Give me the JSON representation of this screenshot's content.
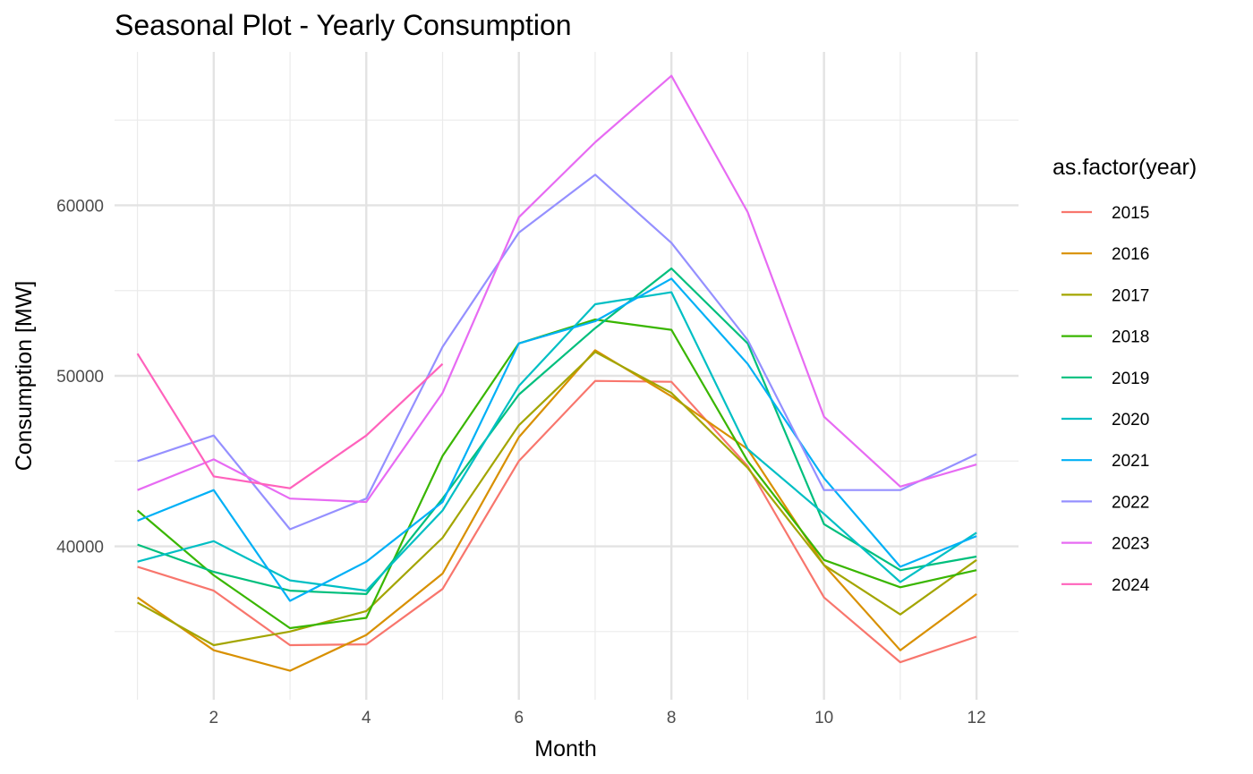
{
  "chart_data": {
    "type": "line",
    "title": "Seasonal Plot - Yearly Consumption",
    "xlabel": "Month",
    "ylabel": "Consumption [MW]",
    "xlim": [
      0.7,
      12.55
    ],
    "ylim": [
      31000,
      69000
    ],
    "x_ticks": [
      2,
      4,
      6,
      8,
      10,
      12
    ],
    "y_ticks": [
      40000,
      50000,
      60000
    ],
    "grid": true,
    "legend": {
      "title": "as.factor(year)",
      "position": "right"
    },
    "series": [
      {
        "name": "2015",
        "color": "#F8766D",
        "x": [
          1,
          2,
          3,
          4,
          5,
          6,
          7,
          8,
          9,
          10,
          11,
          12
        ],
        "values": [
          38800,
          37400,
          34200,
          34250,
          37500,
          45000,
          49700,
          49650,
          44700,
          37000,
          33200,
          34700
        ]
      },
      {
        "name": "2016",
        "color": "#D89000",
        "x": [
          1,
          2,
          3,
          4,
          5,
          6,
          7,
          8,
          9,
          10,
          11,
          12
        ],
        "values": [
          37000,
          33900,
          32700,
          34800,
          38400,
          46400,
          51500,
          48800,
          45700,
          38900,
          33900,
          37200
        ]
      },
      {
        "name": "2017",
        "color": "#A3A500",
        "x": [
          1,
          2,
          3,
          4,
          5,
          6,
          7,
          8,
          9,
          10,
          11,
          12
        ],
        "values": [
          36700,
          34200,
          35000,
          36200,
          40500,
          47100,
          51400,
          49000,
          44600,
          38900,
          36000,
          39200
        ]
      },
      {
        "name": "2018",
        "color": "#39B600",
        "x": [
          1,
          2,
          3,
          4,
          5,
          6,
          7,
          8,
          9,
          10,
          11,
          12
        ],
        "values": [
          42100,
          38300,
          35200,
          35800,
          45300,
          51900,
          53300,
          52700,
          45000,
          39200,
          37600,
          38600
        ]
      },
      {
        "name": "2019",
        "color": "#00BF7D",
        "x": [
          1,
          2,
          3,
          4,
          5,
          6,
          7,
          8,
          9,
          10,
          11,
          12
        ],
        "values": [
          40100,
          38500,
          37400,
          37200,
          42800,
          48900,
          52800,
          56300,
          51900,
          41300,
          38600,
          39400
        ]
      },
      {
        "name": "2020",
        "color": "#00BFC4",
        "x": [
          1,
          2,
          3,
          4,
          5,
          6,
          7,
          8,
          9,
          10,
          11,
          12
        ],
        "values": [
          39100,
          40300,
          38000,
          37400,
          42100,
          49400,
          54200,
          54900,
          45700,
          41900,
          37900,
          40800
        ]
      },
      {
        "name": "2021",
        "color": "#00B0F6",
        "x": [
          1,
          2,
          3,
          4,
          5,
          6,
          7,
          8,
          9,
          10,
          11,
          12
        ],
        "values": [
          41500,
          43300,
          36800,
          39100,
          42600,
          51900,
          53200,
          55700,
          50700,
          44000,
          38800,
          40600
        ]
      },
      {
        "name": "2022",
        "color": "#9590FF",
        "x": [
          1,
          2,
          3,
          4,
          5,
          6,
          7,
          8,
          9,
          10,
          11,
          12
        ],
        "values": [
          45000,
          46500,
          41000,
          42800,
          51700,
          58400,
          61800,
          57800,
          52100,
          43300,
          43300,
          45400
        ]
      },
      {
        "name": "2023",
        "color": "#E76BF3",
        "x": [
          1,
          2,
          3,
          4,
          5,
          6,
          7,
          8,
          9,
          10,
          11,
          12
        ],
        "values": [
          43300,
          45100,
          42800,
          42600,
          49000,
          59300,
          63700,
          67600,
          59600,
          47600,
          43500,
          44800
        ]
      },
      {
        "name": "2024",
        "color": "#FF62BC",
        "x": [
          1,
          2,
          3,
          4,
          5
        ],
        "values": [
          51300,
          44100,
          43400,
          46500,
          50700
        ]
      }
    ]
  }
}
